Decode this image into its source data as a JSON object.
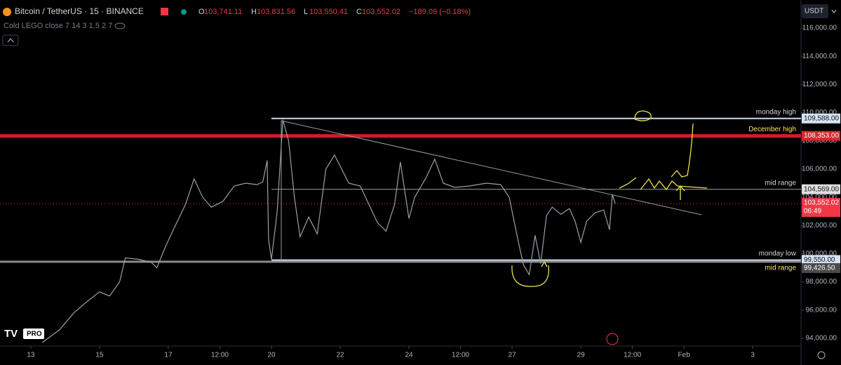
{
  "header": {
    "symbol": "Bitcoin / TetherUS · 15 · BINANCE",
    "ohlc": [
      {
        "key": "O",
        "value": "103,741.11"
      },
      {
        "key": "H",
        "value": "103,831.56"
      },
      {
        "key": "L",
        "value": "103,550.41"
      },
      {
        "key": "C",
        "value": "103,552.02"
      }
    ],
    "change": "−189.09 (−0.18%)",
    "indicator": "Cold LEGO close 7 14 3 1.5 2 7",
    "currency": "USDT",
    "pro_badge": "PRO",
    "countdown": "06:49"
  },
  "chart_data": {
    "type": "line",
    "color": "#9aa0a8",
    "x": [
      8,
      20,
      30,
      38,
      48,
      55,
      62,
      66,
      75,
      84,
      88,
      94,
      100,
      108,
      114,
      120,
      126,
      134,
      142,
      150,
      158,
      162,
      165,
      166,
      168,
      172,
      176,
      180,
      184,
      188,
      194,
      200,
      206,
      212,
      222,
      230,
      236,
      242,
      248,
      254,
      258,
      264,
      268,
      276,
      282,
      288,
      296,
      306,
      318,
      328,
      334,
      340,
      344,
      348,
      352,
      356,
      360,
      364,
      370,
      376,
      380,
      384,
      388,
      394,
      400,
      404,
      406,
      408
    ],
    "values": [
      93700,
      94600,
      95800,
      96500,
      97300,
      97000,
      98000,
      99700,
      99600,
      99400,
      99000,
      100500,
      101800,
      103500,
      105300,
      104000,
      103300,
      103700,
      104800,
      105000,
      104900,
      105100,
      106600,
      101000,
      99600,
      103000,
      109500,
      108000,
      104000,
      101200,
      102600,
      101400,
      106000,
      107000,
      105000,
      104800,
      103500,
      102200,
      101600,
      103500,
      106500,
      102500,
      104000,
      105400,
      106700,
      105000,
      104700,
      104800,
      105000,
      104900,
      104000,
      101000,
      99200,
      98500,
      101300,
      99300,
      102700,
      103300,
      102800,
      103200,
      102300,
      100800,
      102300,
      102900,
      103100,
      101700,
      104200,
      103552.02
    ],
    "xlim": [
      -21.5,
      537.7
    ],
    "ylim": [
      93450,
      117990
    ],
    "xticks": [
      {
        "value": 0,
        "label": "13"
      },
      {
        "value": 48,
        "label": "15"
      },
      {
        "value": 96,
        "label": "17"
      },
      {
        "value": 132,
        "label": "12:00"
      },
      {
        "value": 168,
        "label": "20"
      },
      {
        "value": 216,
        "label": "22"
      },
      {
        "value": 264,
        "label": "24"
      },
      {
        "value": 300,
        "label": "12:00"
      },
      {
        "value": 336,
        "label": "27"
      },
      {
        "value": 384,
        "label": "29"
      },
      {
        "value": 420,
        "label": "12:00"
      },
      {
        "value": 456,
        "label": "Feb"
      },
      {
        "value": 504,
        "label": "3"
      }
    ],
    "yticks": [
      {
        "value": 94000,
        "label": "94,000.00"
      },
      {
        "value": 96000,
        "label": "96,000.00"
      },
      {
        "value": 98000,
        "label": "98,000.00"
      },
      {
        "value": 100000,
        "label": "100,000.00"
      },
      {
        "value": 102000,
        "label": "102,000.00"
      },
      {
        "value": 104000,
        "label": "104,000.00"
      },
      {
        "value": 106000,
        "label": "106,000.00"
      },
      {
        "value": 108000,
        "label": "108,000.00"
      },
      {
        "value": 110000,
        "label": "110,000.00"
      },
      {
        "value": 112000,
        "label": "112,000.00"
      },
      {
        "value": 114000,
        "label": "114,000.00"
      },
      {
        "value": 116000,
        "label": "116,000.00"
      }
    ],
    "levels": [
      {
        "name": "monday high",
        "price": {
          "value": 109588,
          "label": "109,588.00"
        },
        "from": 168,
        "color": "#c9d8ec",
        "tag": "#d6e4f5",
        "text": "#111",
        "name_color": "#d1d4dc",
        "width": 2
      },
      {
        "name": "December high",
        "price": {
          "value": 108353,
          "label": "108,353.00"
        },
        "color": "#c8202a",
        "tag": "#d12b2b",
        "text": "#fff",
        "name_color": "#f5e663",
        "width": 5
      },
      {
        "name": "mid range",
        "price": {
          "value": 104569,
          "label": "104,569.00"
        },
        "from": 168,
        "color": "#9a9a9a",
        "tag": "#e0e0e0",
        "text": "#111",
        "name_color": "#d1d4dc",
        "width": 1
      },
      {
        "name": "monday low",
        "price": {
          "value": 99550,
          "label": "99,550.00"
        },
        "from": 168,
        "color": "#c9d8ec",
        "tag": "#d6e4f5",
        "text": "#111",
        "name_color": "#d1d4dc",
        "width": 2
      },
      {
        "name": "mid range",
        "price": {
          "value": 99426.5,
          "label": "99,426.50"
        },
        "color": "#8a8a8a",
        "tag": "#4a4a4a",
        "text": "#fff",
        "name_color": "#f5e663",
        "width": 3
      }
    ],
    "last": {
      "value": 103552.02,
      "label": "103,552.02"
    }
  }
}
